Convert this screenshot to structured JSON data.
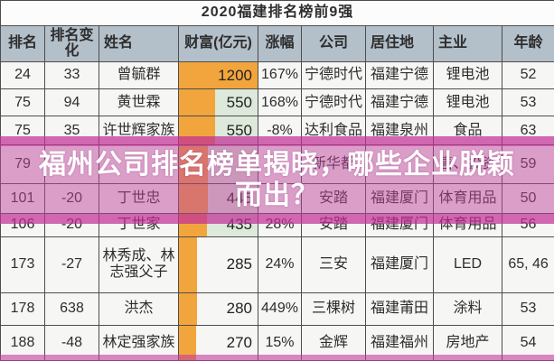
{
  "title": "2020福建排名榜前9强",
  "banner": {
    "line1": "福州公司排名榜单揭晓，哪些企业脱颖",
    "line2": "而出？"
  },
  "columns": [
    "排名",
    "排名变化",
    "姓名",
    "财富(亿元)",
    "涨幅",
    "公司",
    "居住地",
    "主业",
    "年龄"
  ],
  "rows": [
    {
      "rank": "24",
      "change": "33",
      "name": "曾毓群",
      "wealth": "1200",
      "gain": "167%",
      "company": "宁德时代",
      "residence": "福建宁德",
      "business": "锂电池",
      "age": "52",
      "bar_pct": 100
    },
    {
      "rank": "75",
      "change": "94",
      "name": "黄世霖",
      "wealth": "550",
      "gain": "168%",
      "company": "宁德时代",
      "residence": "福建宁德",
      "business": "锂电池",
      "age": "53",
      "bar_pct": 46
    },
    {
      "rank": "75",
      "change": "35",
      "name": "许世辉家族",
      "wealth": "550",
      "gain": "-8%",
      "company": "达利食品",
      "residence": "福建泉州",
      "business": "食品",
      "age": "63",
      "bar_pct": 46
    },
    {
      "rank": "79",
      "change": "",
      "name": "",
      "wealth": "",
      "gain": "",
      "company": "新华都",
      "residence": "",
      "business": "售、投资",
      "age": "59",
      "bar_pct": 37
    },
    {
      "rank": "101",
      "change": "-20",
      "name": "丁世忠",
      "wealth": "445",
      "gain": "",
      "company": "安踏",
      "residence": "福建厦门",
      "business": "体育用品",
      "age": "50",
      "bar_pct": 37
    },
    {
      "rank": "106",
      "change": "-20",
      "name": "丁世家",
      "wealth": "435",
      "gain": "28%",
      "company": "安踏",
      "residence": "福建厦门",
      "business": "体育用品",
      "age": "56",
      "bar_pct": 36
    },
    {
      "rank": "173",
      "change": "-27",
      "name": "林秀成、林志强父子",
      "wealth": "285",
      "gain": "24%",
      "company": "三安",
      "residence": "福建厦门",
      "business": "LED",
      "age": "65, 46",
      "bar_pct": 23
    },
    {
      "rank": "178",
      "change": "638",
      "name": "洪杰",
      "wealth": "280",
      "gain": "449%",
      "company": "三棵树",
      "residence": "福建莆田",
      "business": "涂料",
      "age": "53",
      "bar_pct": 23
    },
    {
      "rank": "188",
      "change": "-48",
      "name": "林定强家族",
      "wealth": "270",
      "gain": "15%",
      "company": "金辉",
      "residence": "福建福州",
      "business": "房地产",
      "age": "54",
      "bar_pct": 22
    }
  ],
  "colors": {
    "bar_orange": "#f2a53c",
    "wealth_mint": "#dde9da",
    "header_bg": "#b3bfc9",
    "banner_pink": "#bd469e"
  },
  "chart_data": {
    "type": "table",
    "title": "2020福建排名榜前9强",
    "columns": [
      "排名",
      "排名变化",
      "姓名",
      "财富(亿元)",
      "涨幅",
      "公司",
      "居住地",
      "主业",
      "年龄"
    ],
    "rows": [
      [
        "24",
        "33",
        "曾毓群",
        "1200",
        "167%",
        "宁德时代",
        "福建宁德",
        "锂电池",
        "52"
      ],
      [
        "75",
        "94",
        "黄世霖",
        "550",
        "168%",
        "宁德时代",
        "福建宁德",
        "锂电池",
        "53"
      ],
      [
        "75",
        "35",
        "许世辉家族",
        "550",
        "-8%",
        "达利食品",
        "福建泉州",
        "食品",
        "63"
      ],
      [
        "79",
        "",
        "",
        "",
        "",
        "新华都",
        "",
        "售、投资",
        "59"
      ],
      [
        "101",
        "-20",
        "丁世忠",
        "445",
        "",
        "安踏",
        "福建厦门",
        "体育用品",
        "50"
      ],
      [
        "106",
        "-20",
        "丁世家",
        "435",
        "28%",
        "安踏",
        "福建厦门",
        "体育用品",
        "56"
      ],
      [
        "173",
        "-27",
        "林秀成、林志强父子",
        "285",
        "24%",
        "三安",
        "福建厦门",
        "LED",
        "65, 46"
      ],
      [
        "178",
        "638",
        "洪杰",
        "280",
        "449%",
        "三棵树",
        "福建莆田",
        "涂料",
        "53"
      ],
      [
        "188",
        "-48",
        "林定强家族",
        "270",
        "15%",
        "金辉",
        "福建福州",
        "房地产",
        "54"
      ]
    ],
    "notes": "财富 column shows orange data bars proportional to value; overlay banner text covers middle rows"
  }
}
